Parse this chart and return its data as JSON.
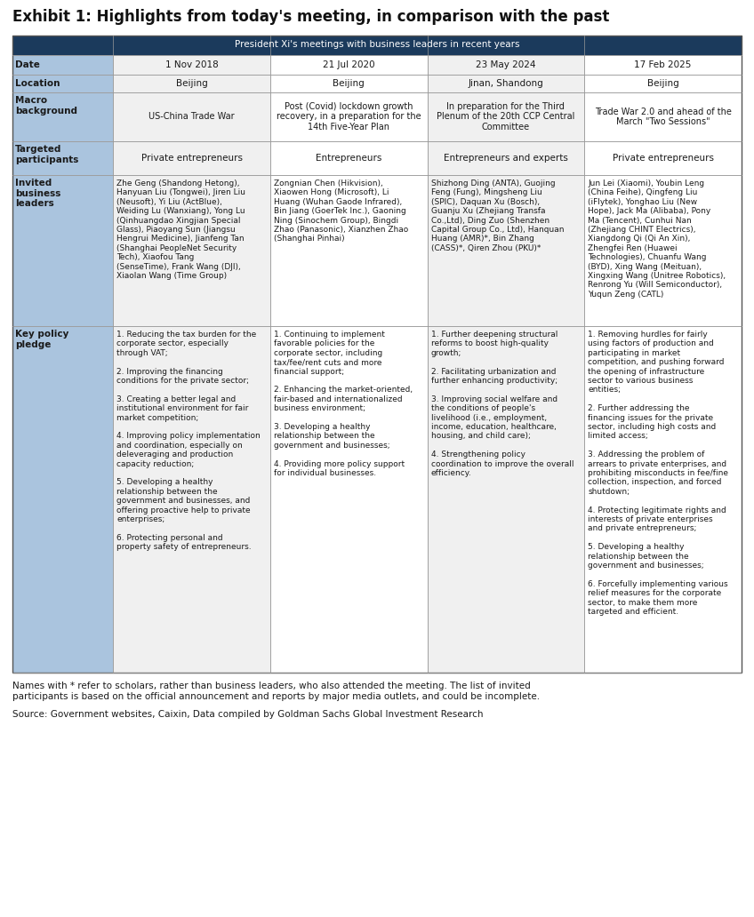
{
  "title": "Exhibit 1: Highlights from today's meeting, in comparison with the past",
  "subtitle": "President Xi's meetings with business leaders in recent years",
  "footer1": "Names with * refer to scholars, rather than business leaders, who also attended the meeting. The list of invited\nparticipants is based on the official announcement and reports by major media outlets, and could be incomplete.",
  "footer2": "Source: Government websites, Caixin, Data compiled by Goldman Sachs Global Investment Research",
  "col_header": [
    "",
    "1 Nov 2018",
    "21 Jul 2020",
    "23 May 2024",
    "17 Feb 2025"
  ],
  "header_bg": "#1b3a5c",
  "header_fg": "#ffffff",
  "label_bg": "#aac4de",
  "date_bg_odd": "#f0f0f0",
  "date_bg_even": "#ffffff",
  "invited_bg_odd": "#f0f0f0",
  "invited_bg_even": "#ffffff",
  "invited_col2_bg": "#e8eef5",
  "data": {
    "Location": [
      "Beijing",
      "Beijing",
      "Jinan, Shandong",
      "Beijing"
    ],
    "Macro_background": [
      "US-China Trade War",
      "Post (Covid) lockdown growth\nrecovery, in a preparation for the\n14th Five-Year Plan",
      "In preparation for the Third\nPlenum of the 20th CCP Central\nCommittee",
      "Trade War 2.0 and ahead of the\nMarch \"Two Sessions\""
    ],
    "Targeted_participants": [
      "Private entrepreneurs",
      "Entrepreneurs",
      "Entrepreneurs and experts",
      "Private entrepreneurs"
    ],
    "Invited_business_leaders": [
      "Zhe Geng (Shandong Hetong),\nHanyuan Liu (Tongwei), Jiren Liu\n(Neusoft), Yi Liu (ActBlue),\nWeiding Lu (Wanxiang), Yong Lu\n(Qinhuangdao Xingjian Special\nGlass), Piaoyang Sun (Jiangsu\nHengrui Medicine), Jianfeng Tan\n(Shanghai PeopleNet Security\nTech), Xiaofou Tang\n(SenseTime), Frank Wang (DJI),\nXiaolan Wang (Time Group)",
      "Zongnian Chen (Hikvision),\nXiaowen Hong (Microsoft), Li\nHuang (Wuhan Gaode Infrared),\nBin Jiang (GoerTek Inc.), Gaoning\nNing (Sinochem Group), Bingdi\nZhao (Panasonic), Xianzhen Zhao\n(Shanghai Pinhai)",
      "Shizhong Ding (ANTA), Guojing\nFeng (Fung), Mingsheng Liu\n(SPIC), Daquan Xu (Bosch),\nGuanju Xu (Zhejiang Transfa\nCo.,Ltd), Ding Zuo (Shenzhen\nCapital Group Co., Ltd), Hanquan\nHuang (AMR)*, Bin Zhang\n(CASS)*, Qiren Zhou (PKU)*",
      "Jun Lei (Xiaomi), Youbin Leng\n(China Feihe), Qingfeng Liu\n(iFlytek), Yonghao Liu (New\nHope), Jack Ma (Alibaba), Pony\nMa (Tencent), Cunhui Nan\n(Zhejiang CHINT Electrics),\nXiangdong Qi (Qi An Xin),\nZhengfei Ren (Huawei\nTechnologies), Chuanfu Wang\n(BYD), Xing Wang (Meituan),\nXingxing Wang (Unitree Robotics),\nRenrong Yu (Will Semiconductor),\nYuqun Zeng (CATL)"
    ],
    "Key_policy_pledge": [
      "1. Reducing the tax burden for the\ncorporate sector, especially\nthrough VAT;\n\n2. Improving the financing\nconditions for the private sector;\n\n3. Creating a better legal and\ninstitutional environment for fair\nmarket competition;\n\n4. Improving policy implementation\nand coordination, especially on\ndeleveraging and production\ncapacity reduction;\n\n5. Developing a healthy\nrelationship between the\ngovernment and businesses, and\noffering proactive help to private\nenterprises;\n\n6. Protecting personal and\nproperty safety of entrepreneurs.",
      "1. Continuing to implement\nfavorable policies for the\ncorporate sector, including\ntax/fee/rent cuts and more\nfinancial support;\n\n2. Enhancing the market-oriented,\nfair-based and internationalized\nbusiness environment;\n\n3. Developing a healthy\nrelationship between the\ngovernment and businesses;\n\n4. Providing more policy support\nfor individual businesses.",
      "1. Further deepening structural\nreforms to boost high-quality\ngrowth;\n\n2. Facilitating urbanization and\nfurther enhancing productivity;\n\n3. Improving social welfare and\nthe conditions of people's\nlivelihood (i.e., employment,\nincome, education, healthcare,\nhousing, and child care);\n\n4. Strengthening policy\ncoordination to improve the overall\nefficiency.",
      "1. Removing hurdles for fairly\nusing factors of production and\nparticipating in market\ncompetition, and pushing forward\nthe opening of infrastructure\nsector to various business\nentities;\n\n2. Further addressing the\nfinancing issues for the private\nsector, including high costs and\nlimited access;\n\n3. Addressing the problem of\narrears to private enterprises, and\nprohibiting misconducts in fee/fine\ncollection, inspection, and forced\nshutdown;\n\n4. Protecting legitimate rights and\ninterests of private enterprises\nand private entrepreneurs;\n\n5. Developing a healthy\nrelationship between the\ngovernment and businesses;\n\n6. Forcefully implementing various\nrelief measures for the corporate\nsector, to make them more\ntargeted and efficient."
    ]
  }
}
